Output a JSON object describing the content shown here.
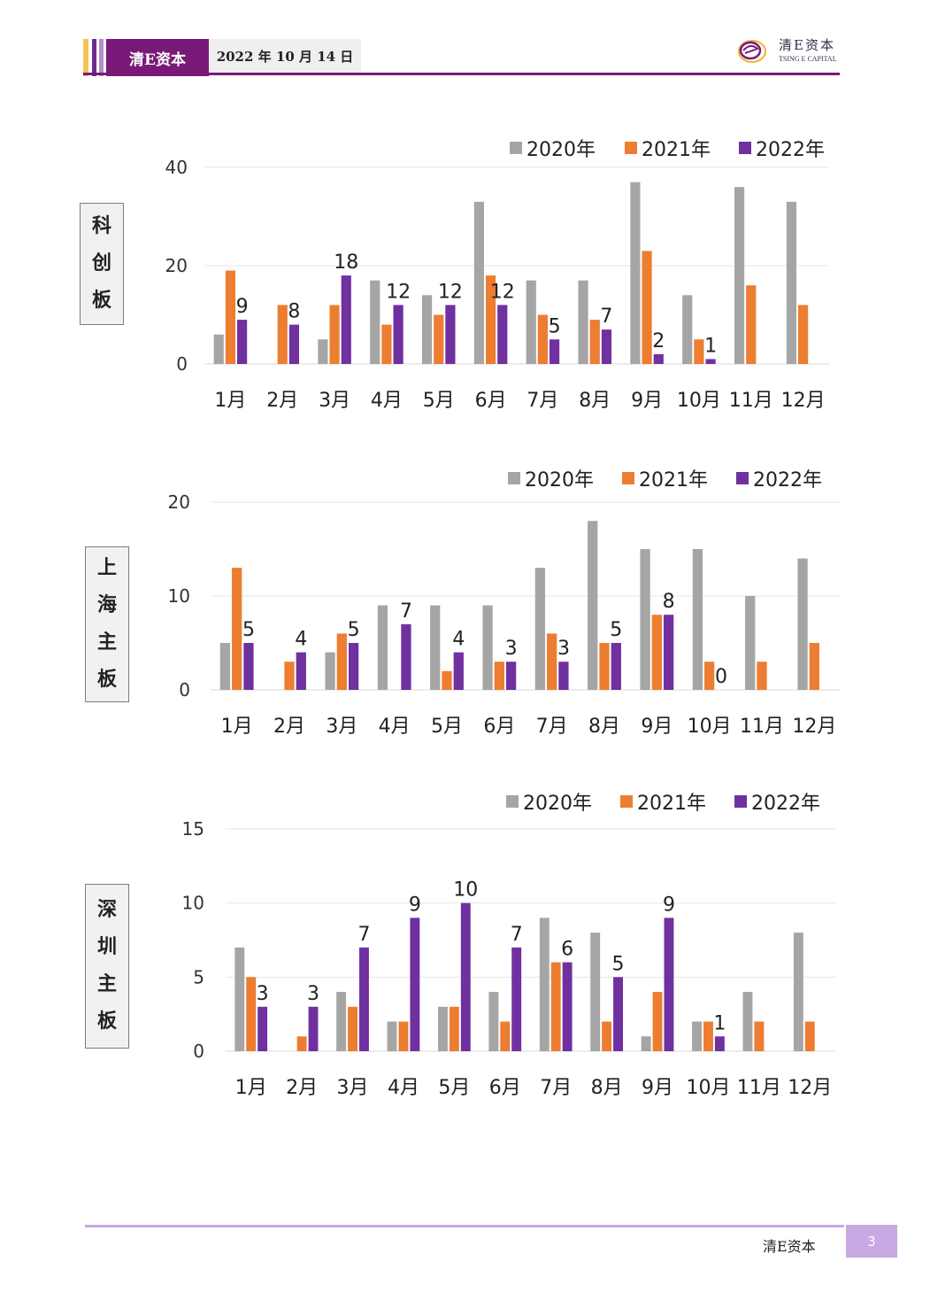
{
  "header": {
    "brand": "清E资本",
    "date": "2022 年 10 月 14 日",
    "logo_cn": "清E资本",
    "logo_en": "TSING E CAPITAL"
  },
  "colors": {
    "s2020": "#a5a5a5",
    "s2021": "#ed7d31",
    "s2022": "#7030a0",
    "header_purple": "#7a1a78"
  },
  "footer": {
    "brand": "清E资本",
    "page": "3"
  },
  "chart_data": [
    {
      "type": "bar",
      "label_chars": [
        "科",
        "创",
        "板"
      ],
      "categories": [
        "1月",
        "2月",
        "3月",
        "4月",
        "5月",
        "6月",
        "7月",
        "8月",
        "9月",
        "10月",
        "11月",
        "12月"
      ],
      "ylim": [
        0,
        40
      ],
      "yticks": [
        "0",
        "20",
        "40"
      ],
      "grid": true,
      "legend_position": "top-right",
      "series": [
        {
          "name": "2020年",
          "values": [
            6,
            0,
            5,
            17,
            14,
            33,
            17,
            17,
            37,
            14,
            36,
            33
          ]
        },
        {
          "name": "2021年",
          "values": [
            19,
            12,
            12,
            8,
            10,
            18,
            10,
            9,
            23,
            5,
            16,
            12
          ]
        },
        {
          "name": "2022年",
          "values": [
            9,
            8,
            18,
            12,
            12,
            12,
            5,
            7,
            2,
            1,
            null,
            null
          ]
        }
      ],
      "data_labels": [
        "9",
        "8",
        "18",
        "12",
        "12",
        "12",
        "5",
        "7",
        "2",
        "1"
      ]
    },
    {
      "type": "bar",
      "label_chars": [
        "上",
        "海",
        "主",
        "板"
      ],
      "categories": [
        "1月",
        "2月",
        "3月",
        "4月",
        "5月",
        "6月",
        "7月",
        "8月",
        "9月",
        "10月",
        "11月",
        "12月"
      ],
      "ylim": [
        0,
        20
      ],
      "yticks": [
        "0",
        "10",
        "20"
      ],
      "grid": true,
      "legend_position": "top-right",
      "series": [
        {
          "name": "2020年",
          "values": [
            5,
            0,
            4,
            9,
            9,
            9,
            13,
            18,
            15,
            15,
            10,
            14
          ]
        },
        {
          "name": "2021年",
          "values": [
            13,
            3,
            6,
            0,
            2,
            3,
            6,
            5,
            8,
            3,
            3,
            5
          ]
        },
        {
          "name": "2022年",
          "values": [
            5,
            4,
            5,
            7,
            4,
            3,
            3,
            5,
            8,
            0,
            null,
            null
          ]
        }
      ],
      "data_labels": [
        "5",
        "4",
        "5",
        "7",
        "4",
        "3",
        "3",
        "5",
        "8",
        "0"
      ]
    },
    {
      "type": "bar",
      "label_chars": [
        "深",
        "圳",
        "主",
        "板"
      ],
      "categories": [
        "1月",
        "2月",
        "3月",
        "4月",
        "5月",
        "6月",
        "7月",
        "8月",
        "9月",
        "10月",
        "11月",
        "12月"
      ],
      "ylim": [
        0,
        15
      ],
      "yticks": [
        "0",
        "5",
        "10",
        "15"
      ],
      "grid": true,
      "legend_position": "top-right",
      "series": [
        {
          "name": "2020年",
          "values": [
            7,
            0,
            4,
            2,
            3,
            4,
            9,
            8,
            1,
            2,
            4,
            8
          ]
        },
        {
          "name": "2021年",
          "values": [
            5,
            1,
            3,
            2,
            3,
            2,
            6,
            2,
            4,
            2,
            2,
            2
          ]
        },
        {
          "name": "2022年",
          "values": [
            3,
            3,
            7,
            9,
            10,
            7,
            6,
            5,
            9,
            1,
            null,
            null
          ]
        }
      ],
      "data_labels": [
        "3",
        "3",
        "7",
        "9",
        "10",
        "7",
        "6",
        "5",
        "9",
        "1"
      ]
    }
  ]
}
